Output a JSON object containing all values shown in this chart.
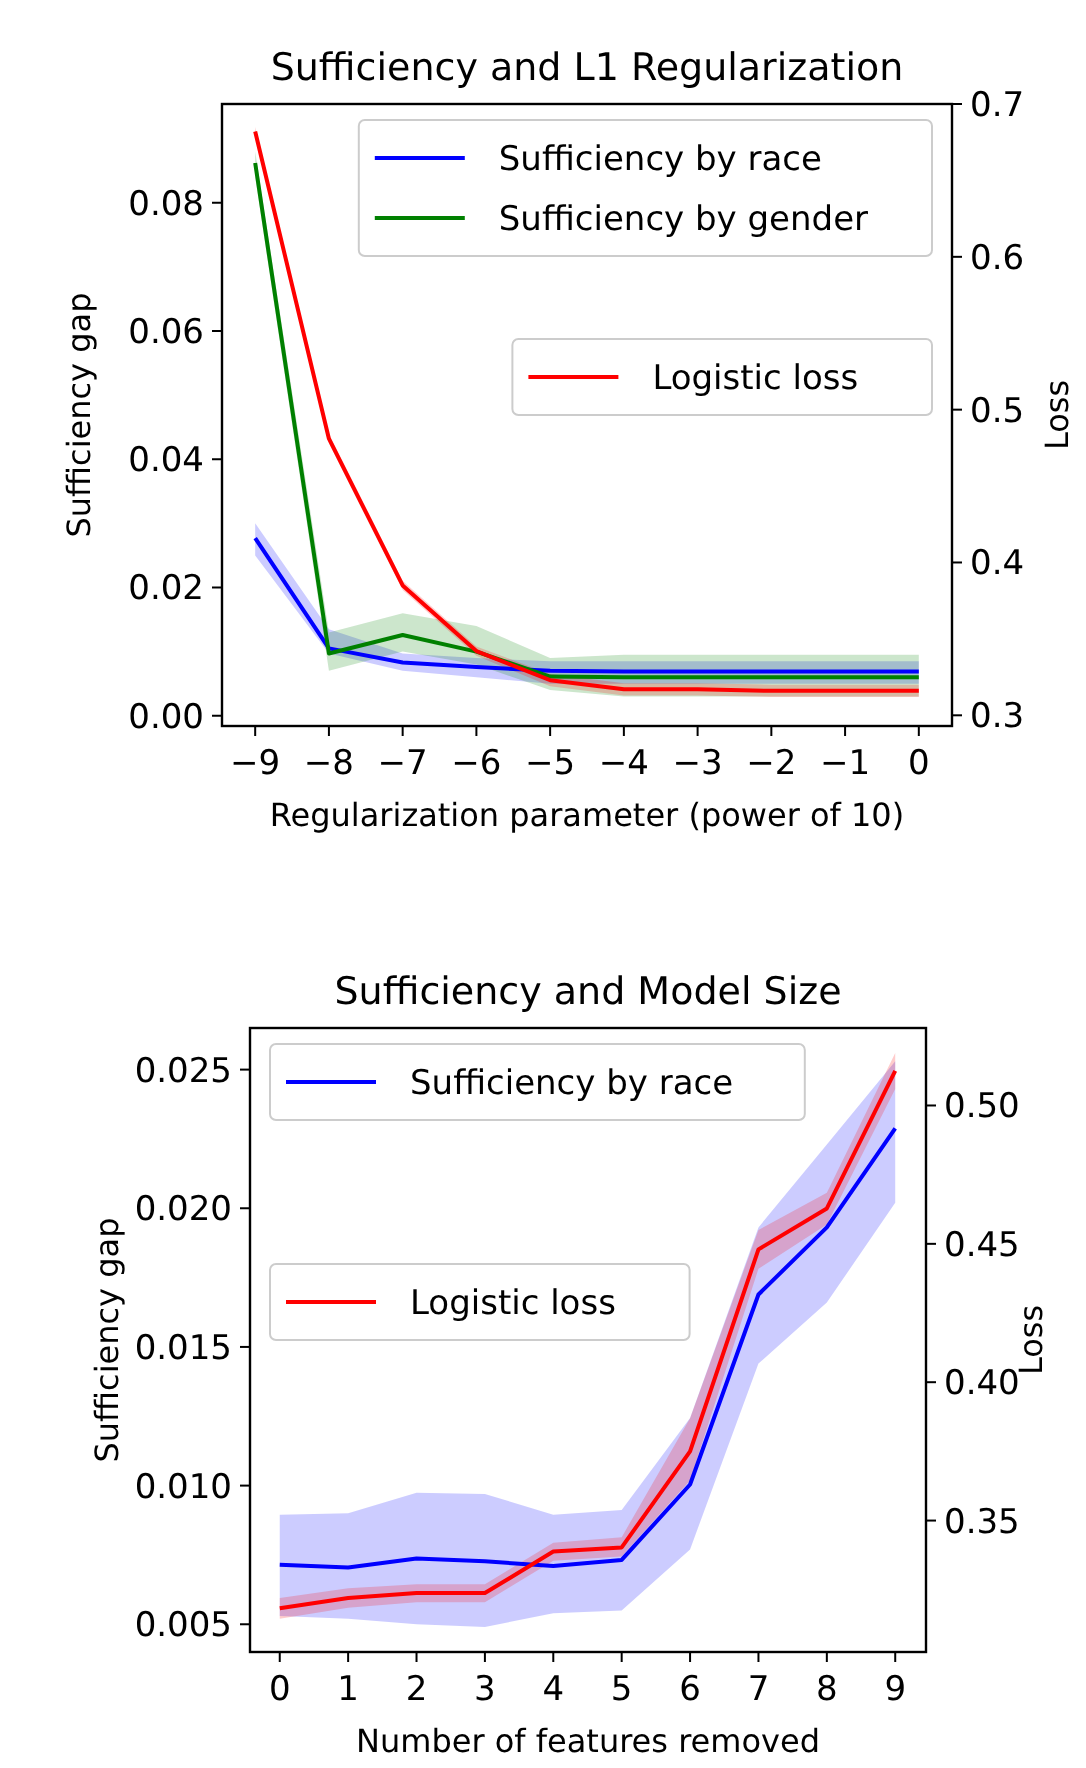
{
  "chart_data": [
    {
      "type": "line",
      "title": "Sufficiency and L1 Regularization",
      "xlabel": "Regularization parameter (power of 10)",
      "ylabel": "Sufficiency gap",
      "y2label": "Loss",
      "x": [
        -9,
        -8,
        -7,
        -6,
        -5,
        -4,
        -3,
        -2,
        -1,
        0
      ],
      "xlim": [
        -9.45,
        0.45
      ],
      "xticks": [
        {
          "value": -9,
          "label": "−9"
        },
        {
          "value": -8,
          "label": "−8"
        },
        {
          "value": -7,
          "label": "−7"
        },
        {
          "value": -6,
          "label": "−6"
        },
        {
          "value": -5,
          "label": "−5"
        },
        {
          "value": -4,
          "label": "−4"
        },
        {
          "value": -3,
          "label": "−3"
        },
        {
          "value": -2,
          "label": "−2"
        },
        {
          "value": -1,
          "label": "−1"
        },
        0
      ],
      "ylim": [
        -0.0016,
        0.0954
      ],
      "yticks": [
        {
          "value": 0,
          "label": "0.00"
        },
        {
          "value": 0.02,
          "label": "0.02"
        },
        {
          "value": 0.04,
          "label": "0.04"
        },
        {
          "value": 0.06,
          "label": "0.06"
        },
        {
          "value": 0.08,
          "label": "0.08"
        }
      ],
      "y2lim": [
        0.293,
        0.7
      ],
      "y2ticks": [
        0.3,
        0.4,
        0.5,
        0.6,
        0.7
      ],
      "legend": "top right",
      "grid": false,
      "series": [
        {
          "name": "Sufficiency by race",
          "color": "#0000ff",
          "values": [
            0.0277,
            0.0105,
            0.0083,
            0.0076,
            0.007,
            0.0069,
            0.0069,
            0.0069,
            0.0069,
            0.0069
          ],
          "lower": [
            0.025,
            0.0097,
            0.007,
            0.006,
            0.005,
            0.005,
            0.005,
            0.005,
            0.005,
            0.005
          ],
          "upper": [
            0.03,
            0.0135,
            0.0097,
            0.009,
            0.0085,
            0.0085,
            0.0085,
            0.0085,
            0.0085,
            0.0085
          ]
        },
        {
          "name": "Sufficiency by gender",
          "color": "#008000",
          "values": [
            0.0862,
            0.0097,
            0.0126,
            0.01,
            0.0061,
            0.006,
            0.006,
            0.006,
            0.006,
            0.006
          ],
          "lower": [
            0.084,
            0.007,
            0.01,
            0.008,
            0.004,
            0.003,
            0.003,
            0.003,
            0.003,
            0.003
          ],
          "upper": [
            0.088,
            0.013,
            0.016,
            0.014,
            0.009,
            0.0095,
            0.0095,
            0.0095,
            0.0095,
            0.0095
          ]
        },
        {
          "name": "Logistic loss",
          "color": "#ff0000",
          "axis": "y2",
          "values": [
            0.682,
            0.481,
            0.385,
            0.342,
            0.323,
            0.317,
            0.317,
            0.316,
            0.316,
            0.316
          ],
          "lower": [
            0.679,
            0.478,
            0.382,
            0.339,
            0.319,
            0.313,
            0.313,
            0.312,
            0.312,
            0.312
          ],
          "upper": [
            0.685,
            0.484,
            0.388,
            0.345,
            0.327,
            0.321,
            0.321,
            0.32,
            0.32,
            0.32
          ]
        }
      ]
    },
    {
      "type": "line",
      "title": "Sufficiency and Model Size",
      "xlabel": "Number of features removed",
      "ylabel": "Sufficiency gap",
      "y2label": "Loss",
      "x": [
        0,
        1,
        2,
        3,
        4,
        5,
        6,
        7,
        8,
        9
      ],
      "xlim": [
        -0.435,
        9.45
      ],
      "xticks": [
        0,
        1,
        2,
        3,
        4,
        5,
        6,
        7,
        8,
        9
      ],
      "ylim": [
        0.004,
        0.0265
      ],
      "yticks": [
        0.005,
        {
          "value": 0.01,
          "label": "0.010"
        },
        0.015,
        {
          "value": 0.02,
          "label": "0.020"
        },
        0.025
      ],
      "y2lim": [
        0.3025,
        0.528
      ],
      "y2ticks": [
        {
          "value": 0.35,
          "label": "0.35"
        },
        {
          "value": 0.4,
          "label": "0.40"
        },
        {
          "value": 0.45,
          "label": "0.45"
        },
        {
          "value": 0.5,
          "label": "0.50"
        }
      ],
      "legend": "top left",
      "grid": false,
      "series": [
        {
          "name": "Sufficiency by race",
          "color": "#0000ff",
          "values": [
            0.00715,
            0.00705,
            0.00737,
            0.00727,
            0.0071,
            0.00732,
            0.01004,
            0.01689,
            0.01931,
            0.02288
          ],
          "lower": [
            0.0053,
            0.0052,
            0.005,
            0.0049,
            0.0054,
            0.0055,
            0.0077,
            0.0144,
            0.0166,
            0.0202
          ],
          "upper": [
            0.00895,
            0.009,
            0.00974,
            0.0097,
            0.00895,
            0.00912,
            0.01244,
            0.01931,
            0.0223,
            0.0253
          ]
        },
        {
          "name": "Logistic loss",
          "color": "#ff0000",
          "axis": "y2",
          "values": [
            0.3183,
            0.322,
            0.3238,
            0.3238,
            0.3388,
            0.3403,
            0.375,
            0.448,
            0.4628,
            0.5125
          ],
          "lower": [
            0.3145,
            0.3185,
            0.3205,
            0.3205,
            0.3355,
            0.337,
            0.3645,
            0.441,
            0.457,
            0.506
          ],
          "upper": [
            0.322,
            0.3255,
            0.327,
            0.327,
            0.342,
            0.344,
            0.387,
            0.455,
            0.4685,
            0.519
          ]
        }
      ]
    }
  ]
}
